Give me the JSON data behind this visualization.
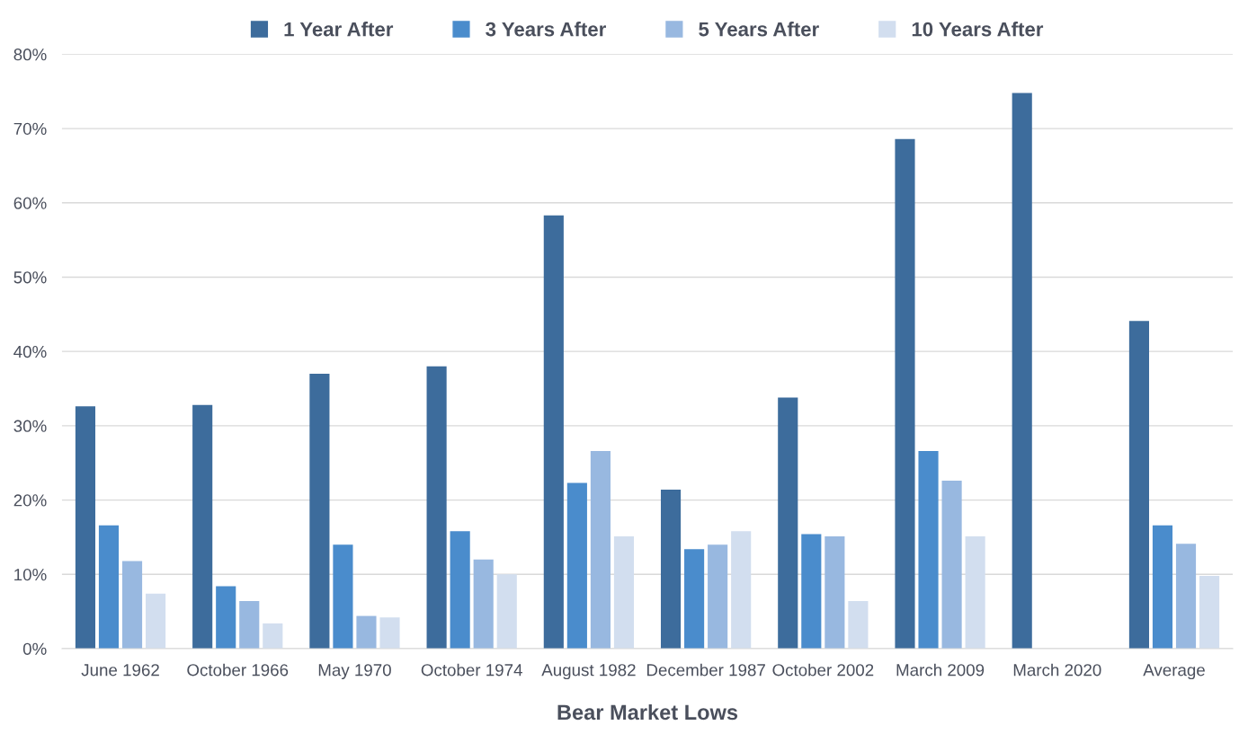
{
  "chart_data": {
    "type": "bar",
    "xlabel": "Bear Market Lows",
    "categories": [
      "June 1962",
      "October 1966",
      "May 1970",
      "October 1974",
      "August 1982",
      "December 1987",
      "October 2002",
      "March 2009",
      "March 2020",
      "Average"
    ],
    "series": [
      {
        "name": "1 Year After",
        "color": "#3d6c9c",
        "values": [
          32.6,
          32.8,
          37.0,
          38.0,
          58.3,
          21.4,
          33.8,
          68.6,
          74.8,
          44.1
        ]
      },
      {
        "name": "3 Years After",
        "color": "#4a8ccc",
        "values": [
          16.6,
          8.4,
          14.0,
          15.8,
          22.3,
          13.4,
          15.4,
          26.6,
          null,
          16.6
        ]
      },
      {
        "name": "5 Years After",
        "color": "#98b8e0",
        "values": [
          11.8,
          6.4,
          4.4,
          12.0,
          26.6,
          14.0,
          15.1,
          22.6,
          null,
          14.1
        ]
      },
      {
        "name": "10 Years After",
        "color": "#d2deef",
        "values": [
          7.4,
          3.4,
          4.2,
          10.0,
          15.1,
          15.8,
          6.4,
          15.1,
          null,
          9.8
        ]
      }
    ],
    "ylim": [
      0,
      80
    ],
    "yticks": [
      {
        "value": 0,
        "label": "0%"
      },
      {
        "value": 10,
        "label": "10%"
      },
      {
        "value": 20,
        "label": "20%"
      },
      {
        "value": 30,
        "label": "30%"
      },
      {
        "value": 40,
        "label": "40%"
      },
      {
        "value": 50,
        "label": "50%"
      },
      {
        "value": 60,
        "label": "60%"
      },
      {
        "value": 70,
        "label": "70%"
      },
      {
        "value": 80,
        "label": "80%"
      }
    ],
    "grid": "y",
    "legend": "top"
  }
}
